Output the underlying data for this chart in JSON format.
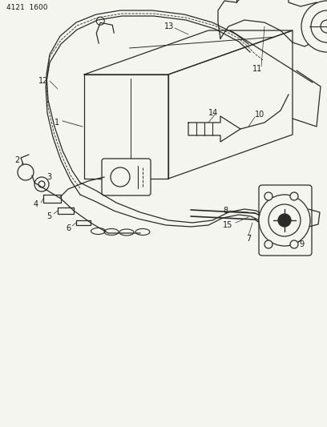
{
  "title": "4121  1600",
  "bg_color": "#f5f5f0",
  "line_color": "#2a2a2a",
  "fig_width": 4.08,
  "fig_height": 5.33,
  "dpi": 100
}
